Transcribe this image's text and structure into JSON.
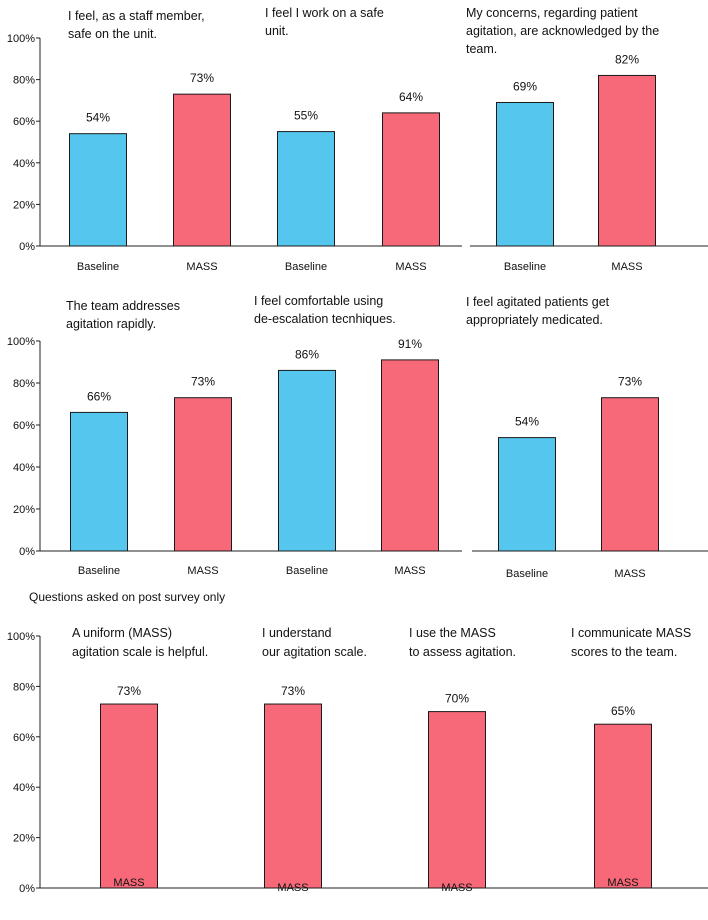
{
  "section_titles": {
    "post_survey": "Questions asked on post survey only"
  },
  "colors": {
    "baseline": "#55c6ee",
    "mass": "#f76878",
    "axis": "#222222",
    "bar_outline": "#1a1a1a"
  },
  "chart_data": [
    {
      "type": "bar",
      "title_lines": [
        "I feel, as a staff member,",
        "safe on the unit."
      ],
      "categories": [
        "Baseline",
        "MASS"
      ],
      "values": [
        54,
        73
      ],
      "labels": [
        "54%",
        "73%"
      ],
      "ylim": [
        0,
        100
      ],
      "yticks": [
        "0%",
        "20%",
        "40%",
        "60%",
        "80%",
        "100%"
      ]
    },
    {
      "type": "bar",
      "title_lines": [
        "I feel I work on a safe",
        "unit."
      ],
      "categories": [
        "Baseline",
        "MASS"
      ],
      "values": [
        55,
        64
      ],
      "labels": [
        "55%",
        "64%"
      ],
      "ylim": [
        0,
        100
      ]
    },
    {
      "type": "bar",
      "title_lines": [
        "My concerns, regarding patient",
        "agitation, are acknowledged by the",
        "team."
      ],
      "categories": [
        "Baseline",
        "MASS"
      ],
      "values": [
        69,
        82
      ],
      "labels": [
        "69%",
        "82%"
      ],
      "ylim": [
        0,
        100
      ]
    },
    {
      "type": "bar",
      "title_lines": [
        "The team addresses",
        "agitation rapidly."
      ],
      "categories": [
        "Baseline",
        "MASS"
      ],
      "values": [
        66,
        73
      ],
      "labels": [
        "66%",
        "73%"
      ],
      "ylim": [
        0,
        100
      ],
      "yticks": [
        "0%",
        "20%",
        "40%",
        "60%",
        "80%",
        "100%"
      ]
    },
    {
      "type": "bar",
      "title_lines": [
        "I feel comfortable using",
        "de-escalation tecnhiques."
      ],
      "categories": [
        "Baseline",
        "MASS"
      ],
      "values": [
        86,
        91
      ],
      "labels": [
        "86%",
        "91%"
      ],
      "ylim": [
        0,
        100
      ]
    },
    {
      "type": "bar",
      "title_lines": [
        "I feel agitated patients get",
        "appropriately medicated."
      ],
      "categories": [
        "Baseline",
        "MASS"
      ],
      "values": [
        54,
        73
      ],
      "labels": [
        "54%",
        "73%"
      ],
      "ylim": [
        0,
        100
      ]
    },
    {
      "type": "bar",
      "title": "Questions asked on post survey only",
      "ylim": [
        0,
        100
      ],
      "yticks": [
        "0%",
        "20%",
        "40%",
        "60%",
        "80%",
        "100%"
      ],
      "groups": [
        {
          "title_lines": [
            "A uniform (MASS)",
            "agitation scale is helpful."
          ],
          "category": "MASS",
          "value": 73,
          "label": "73%"
        },
        {
          "title_lines": [
            "I understand",
            "our agitation scale."
          ],
          "category": "MASS",
          "value": 73,
          "label": "73%"
        },
        {
          "title_lines": [
            "I use the MASS",
            "to assess agitation."
          ],
          "category": "MASS",
          "value": 70,
          "label": "70%"
        },
        {
          "title_lines": [
            "I communicate MASS",
            "scores to the team."
          ],
          "category": "MASS",
          "value": 65,
          "label": "65%"
        }
      ]
    }
  ]
}
